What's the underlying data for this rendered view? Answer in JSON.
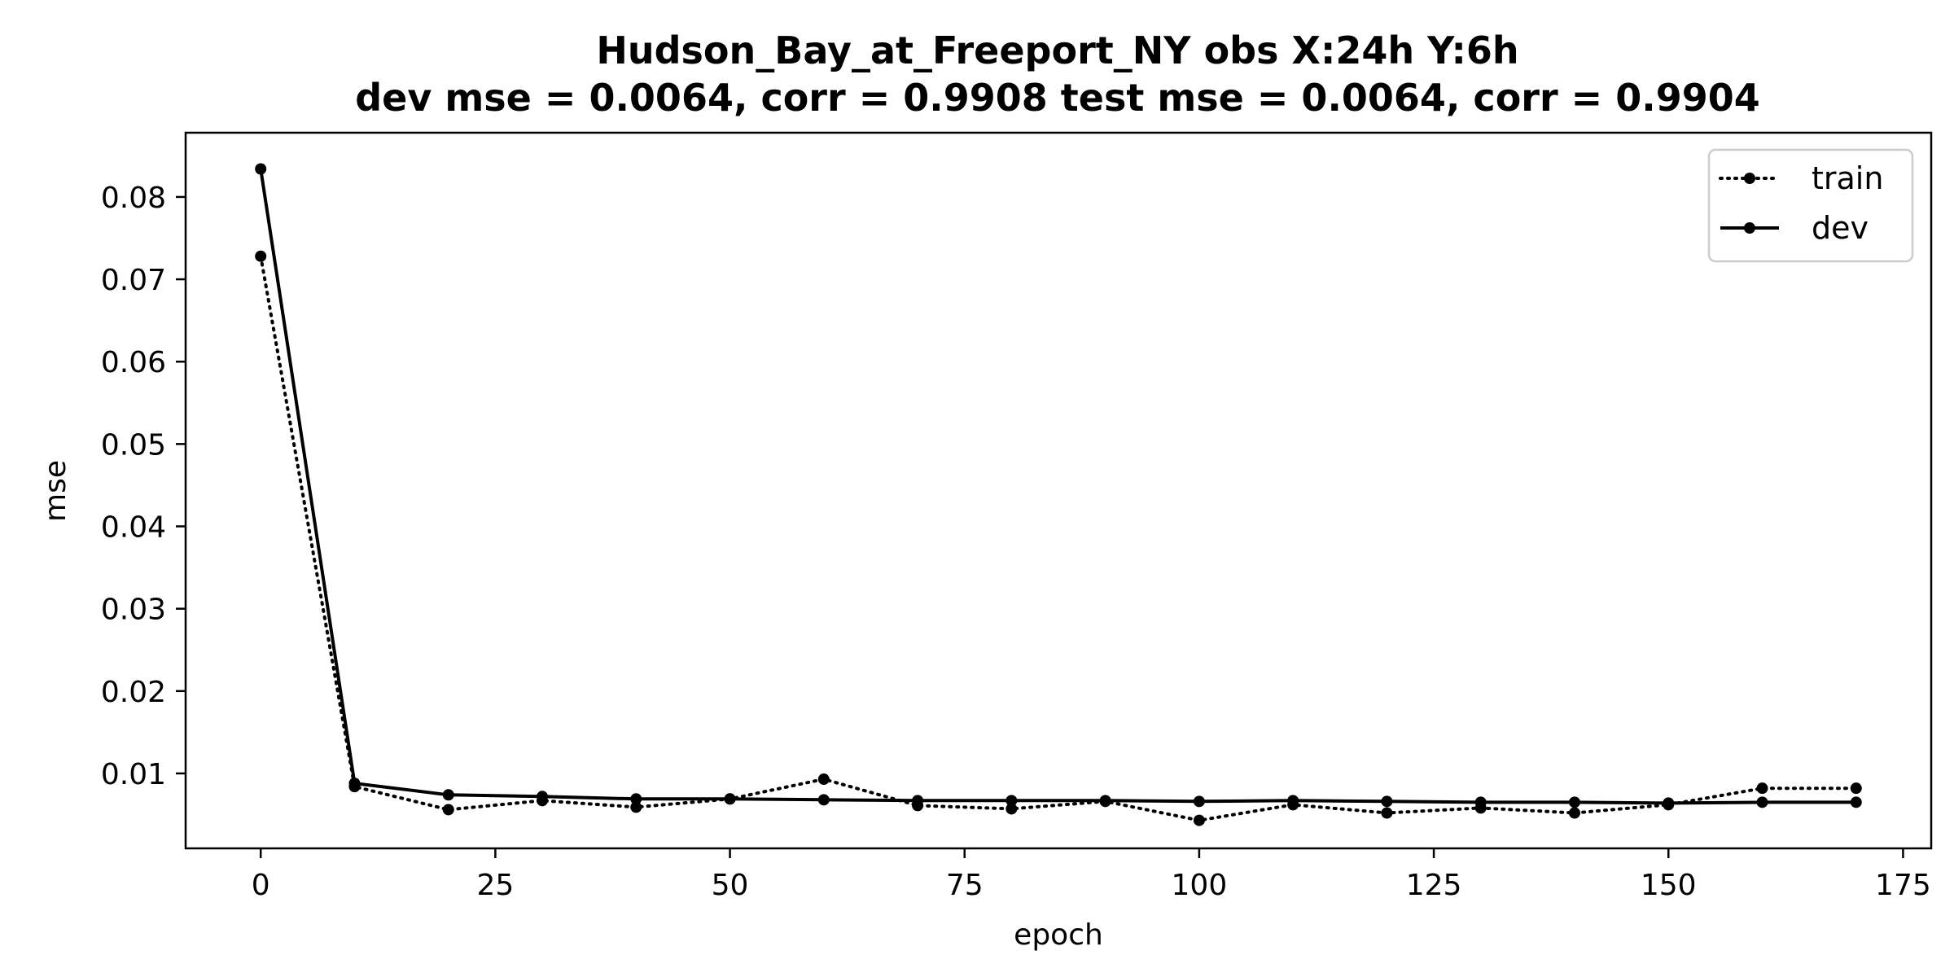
{
  "chart_data": {
    "type": "line",
    "title_line1": "Hudson_Bay_at_Freeport_NY   obs   X:24h   Y:6h",
    "title_line2": "dev mse = 0.0064, corr = 0.9908   test mse = 0.0064, corr = 0.9904",
    "xlabel": "epoch",
    "ylabel": "mse",
    "xlim": [
      -8,
      178
    ],
    "ylim": [
      0.0009,
      0.0878
    ],
    "xticks": [
      0,
      25,
      50,
      75,
      100,
      125,
      150,
      175
    ],
    "xtick_labels": [
      "0",
      "25",
      "50",
      "75",
      "100",
      "125",
      "150",
      "175"
    ],
    "yticks": [
      0.01,
      0.02,
      0.03,
      0.04,
      0.05,
      0.06,
      0.07,
      0.08
    ],
    "ytick_labels": [
      "0.01",
      "0.02",
      "0.03",
      "0.04",
      "0.05",
      "0.06",
      "0.07",
      "0.08"
    ],
    "grid": false,
    "legend_position": "top-right",
    "x": [
      0,
      10,
      20,
      30,
      40,
      50,
      60,
      70,
      80,
      90,
      100,
      110,
      120,
      130,
      140,
      150,
      160,
      170
    ],
    "series": [
      {
        "name": "train",
        "style": "dotted",
        "color": "#000000",
        "values": [
          0.0728,
          0.0084,
          0.0056,
          0.0067,
          0.0059,
          0.0069,
          0.0093,
          0.0061,
          0.0057,
          0.0066,
          0.0043,
          0.0062,
          0.0052,
          0.0058,
          0.0052,
          0.0062,
          0.0082,
          0.0082
        ]
      },
      {
        "name": "dev",
        "style": "solid",
        "color": "#000000",
        "values": [
          0.0834,
          0.0088,
          0.0074,
          0.0072,
          0.0069,
          0.0069,
          0.0068,
          0.0067,
          0.0067,
          0.0067,
          0.0066,
          0.0067,
          0.0066,
          0.0065,
          0.0065,
          0.0064,
          0.0065,
          0.0065
        ]
      }
    ]
  }
}
